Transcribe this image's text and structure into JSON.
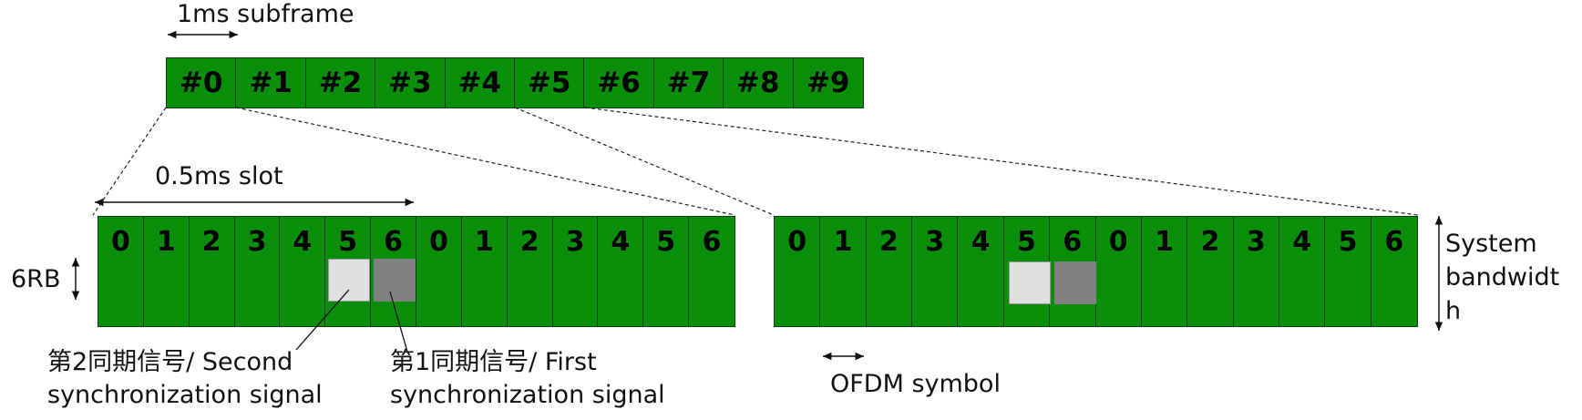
{
  "labels": {
    "subframe": "1ms subframe",
    "slot": "0.5ms slot",
    "rb": "6RB",
    "system_bw_line1": "System",
    "system_bw_line2": "bandwidt",
    "system_bw_line3": "h",
    "second_sync_line1": "第2同期信号/ Second",
    "second_sync_line2": "synchronization signal",
    "first_sync_line1": "第1同期信号/ First",
    "first_sync_line2": "synchronization signal",
    "ofdm": "OFDM symbol"
  },
  "subframes": [
    "#0",
    "#1",
    "#2",
    "#3",
    "#4",
    "#5",
    "#6",
    "#7",
    "#8",
    "#9"
  ],
  "slots_left": [
    "0",
    "1",
    "2",
    "3",
    "4",
    "5",
    "6",
    "0",
    "1",
    "2",
    "3",
    "4",
    "5",
    "6"
  ],
  "slots_right": [
    "0",
    "1",
    "2",
    "3",
    "4",
    "5",
    "6",
    "0",
    "1",
    "2",
    "3",
    "4",
    "5",
    "6"
  ],
  "colors": {
    "resource_green": "#0a8f0a",
    "second_sync": "#e0e0e0",
    "first_sync": "#808080"
  }
}
